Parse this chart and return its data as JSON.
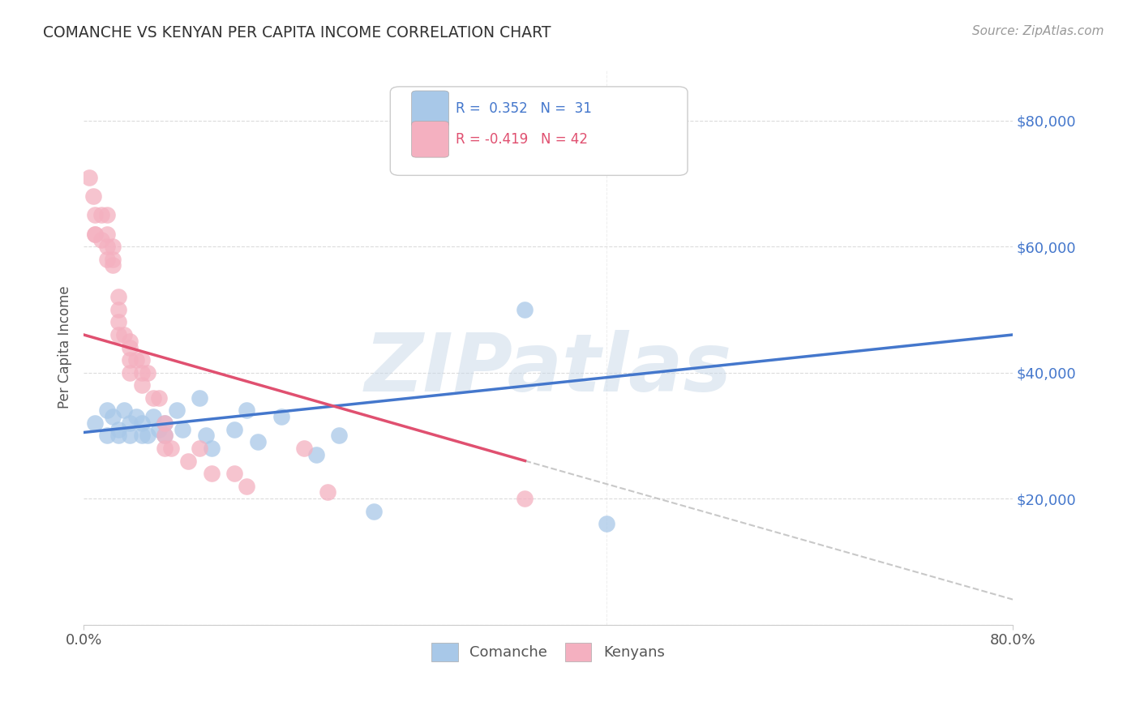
{
  "title": "COMANCHE VS KENYAN PER CAPITA INCOME CORRELATION CHART",
  "source": "Source: ZipAtlas.com",
  "ylabel": "Per Capita Income",
  "ytick_values": [
    0,
    20000,
    40000,
    60000,
    80000
  ],
  "ylim": [
    0,
    88000
  ],
  "xlim": [
    0.0,
    0.8
  ],
  "comanche_color": "#a8c8e8",
  "kenyan_color": "#f4b0c0",
  "comanche_line_color": "#4477cc",
  "kenyan_line_color": "#e05070",
  "background_color": "#ffffff",
  "grid_color": "#cccccc",
  "watermark": "ZIPatlas",
  "watermark_color": "#c8d8e8",
  "comanche_x": [
    0.01,
    0.02,
    0.02,
    0.025,
    0.03,
    0.03,
    0.035,
    0.04,
    0.04,
    0.045,
    0.05,
    0.05,
    0.055,
    0.06,
    0.065,
    0.07,
    0.07,
    0.08,
    0.085,
    0.1,
    0.105,
    0.11,
    0.13,
    0.14,
    0.15,
    0.17,
    0.2,
    0.22,
    0.25,
    0.38,
    0.45
  ],
  "comanche_y": [
    32000,
    34000,
    30000,
    33000,
    31000,
    30000,
    34000,
    32000,
    30000,
    33000,
    30000,
    32000,
    30000,
    33000,
    31000,
    32000,
    30000,
    34000,
    31000,
    36000,
    30000,
    28000,
    31000,
    34000,
    29000,
    33000,
    27000,
    30000,
    18000,
    50000,
    16000
  ],
  "kenyan_x": [
    0.005,
    0.008,
    0.01,
    0.01,
    0.01,
    0.015,
    0.015,
    0.02,
    0.02,
    0.02,
    0.02,
    0.025,
    0.025,
    0.025,
    0.03,
    0.03,
    0.03,
    0.03,
    0.035,
    0.04,
    0.04,
    0.04,
    0.04,
    0.045,
    0.05,
    0.05,
    0.05,
    0.055,
    0.06,
    0.065,
    0.07,
    0.07,
    0.07,
    0.075,
    0.09,
    0.1,
    0.11,
    0.13,
    0.14,
    0.19,
    0.21,
    0.38
  ],
  "kenyan_y": [
    71000,
    68000,
    65000,
    62000,
    62000,
    65000,
    61000,
    65000,
    62000,
    60000,
    58000,
    60000,
    58000,
    57000,
    52000,
    50000,
    48000,
    46000,
    46000,
    45000,
    44000,
    42000,
    40000,
    42000,
    42000,
    40000,
    38000,
    40000,
    36000,
    36000,
    32000,
    30000,
    28000,
    28000,
    26000,
    28000,
    24000,
    24000,
    22000,
    28000,
    21000,
    20000
  ],
  "comanche_trend_x0": 0.0,
  "comanche_trend_y0": 30500,
  "comanche_trend_x1": 0.8,
  "comanche_trend_y1": 46000,
  "kenyan_solid_trend_x0": 0.0,
  "kenyan_solid_trend_y0": 46000,
  "kenyan_solid_trend_x1": 0.38,
  "kenyan_solid_trend_y1": 26000,
  "kenyan_dash_trend_x0": 0.38,
  "kenyan_dash_trend_y0": 26000,
  "kenyan_dash_trend_x1": 0.8,
  "kenyan_dash_trend_y1": 4000
}
